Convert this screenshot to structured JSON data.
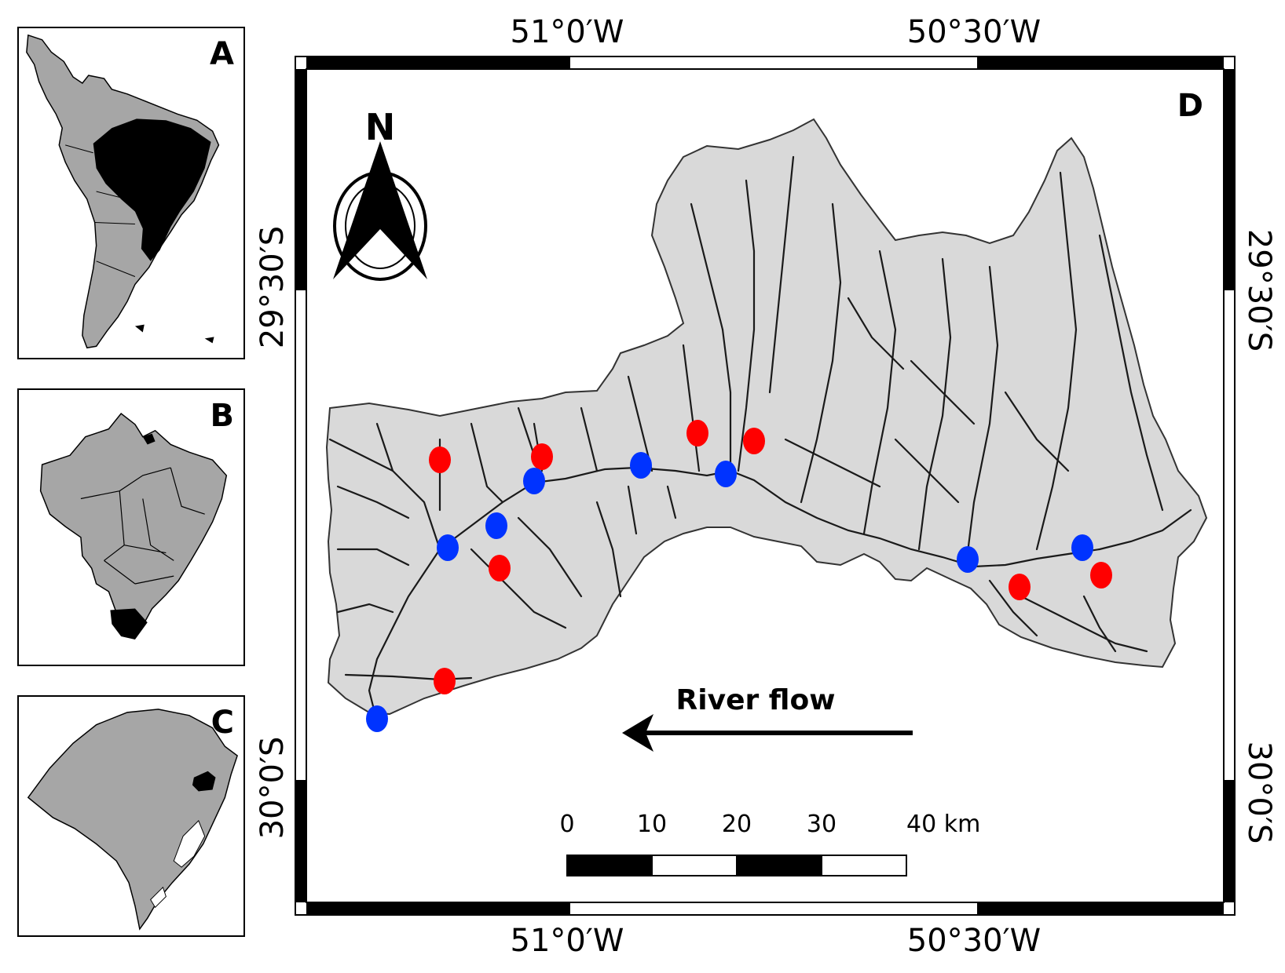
{
  "insets": {
    "a_label": "A",
    "b_label": "B",
    "c_label": "C"
  },
  "map": {
    "panel_label": "D",
    "north_label": "N",
    "top_coords": [
      "51°0′W",
      "50°30′W"
    ],
    "bottom_coords": [
      "51°0′W",
      "50°30′W"
    ],
    "left_coords": [
      "29°30′S",
      "30°0′S"
    ],
    "right_coords": [
      "29°30′S",
      "30°0′S"
    ],
    "river_flow_label": "River flow",
    "scale_labels": [
      "0",
      "10",
      "20",
      "30",
      "40 km"
    ],
    "colors": {
      "basin_fill": "#d9d9d9",
      "inset_fill": "#a6a6a6",
      "highlight": "#000000",
      "point_red": "#ff0000",
      "point_blue": "#0033ff"
    },
    "points": [
      {
        "color": "red"
      },
      {
        "color": "red"
      },
      {
        "color": "red"
      },
      {
        "color": "red"
      },
      {
        "color": "red"
      },
      {
        "color": "red"
      },
      {
        "color": "red"
      },
      {
        "color": "red"
      },
      {
        "color": "blue"
      },
      {
        "color": "blue"
      },
      {
        "color": "blue"
      },
      {
        "color": "blue"
      },
      {
        "color": "blue"
      },
      {
        "color": "blue"
      },
      {
        "color": "blue"
      },
      {
        "color": "blue"
      }
    ]
  }
}
